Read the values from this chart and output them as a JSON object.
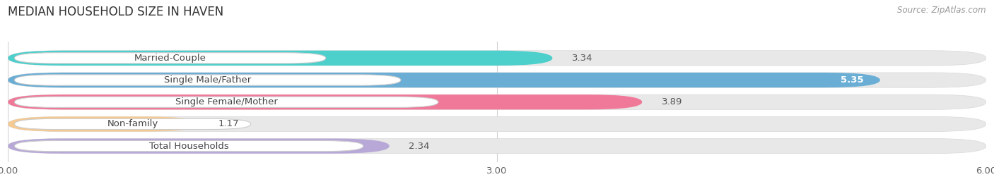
{
  "title": "MEDIAN HOUSEHOLD SIZE IN HAVEN",
  "source": "Source: ZipAtlas.com",
  "categories": [
    "Married-Couple",
    "Single Male/Father",
    "Single Female/Mother",
    "Non-family",
    "Total Households"
  ],
  "values": [
    3.34,
    5.35,
    3.89,
    1.17,
    2.34
  ],
  "bar_colors": [
    "#4dcfcb",
    "#6aaed6",
    "#f07898",
    "#f5c992",
    "#b8a8d8"
  ],
  "bg_bar_color": "#e8e8e8",
  "xlim": [
    0,
    6.0
  ],
  "xticks": [
    0.0,
    3.0,
    6.0
  ],
  "xticklabels": [
    "0.00",
    "3.00",
    "6.00"
  ],
  "background_color": "#ffffff",
  "title_fontsize": 12,
  "label_fontsize": 9.5,
  "value_fontsize": 9.5,
  "source_fontsize": 8.5,
  "bar_height": 0.68,
  "bar_gap": 0.32,
  "label_pill_color": "#ffffff",
  "value_label_dark_bars": [
    "Single Male/Father"
  ],
  "grid_color": "#d0d0d0"
}
